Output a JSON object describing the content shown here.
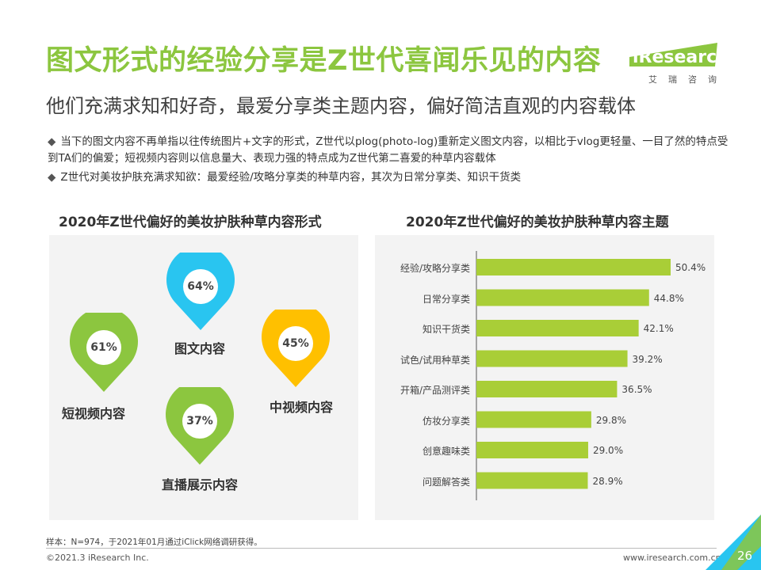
{
  "header": {
    "title": "图文形式的经验分享是Z世代喜闻乐见的内容",
    "subtitle": "他们充满求知和好奇，最爱分享类主题内容，偏好简洁直观的内容载体"
  },
  "logo": {
    "text": "iResearch",
    "sub": "艾瑞咨询"
  },
  "bullets": [
    "当下的图文内容不再单指以往传统图片+文字的形式，Z世代以plog(photo-log)重新定义图文内容，以相比于vlog更轻量、一目了然的特点受到TA们的偏爱；短视频内容则以信息量大、表现力强的特点成为Z世代第二喜爱的种草内容载体",
    "Z世代对美妆护肤充满求知欲：最爱经验/攻略分享类的种草内容，其次为日常分享类、知识干货类"
  ],
  "left_chart": {
    "title": "2020年Z世代偏好的美妆护肤种草内容形式",
    "pins": [
      {
        "label": "图文内容",
        "value": "64%",
        "color": "#29c5f0"
      },
      {
        "label": "短视频内容",
        "value": "61%",
        "color": "#8cc63f"
      },
      {
        "label": "中视频内容",
        "value": "45%",
        "color": "#ffc000"
      },
      {
        "label": "直播展示内容",
        "value": "37%",
        "color": "#8cc63f"
      }
    ]
  },
  "chart_data": {
    "type": "bar",
    "orientation": "horizontal",
    "title": "2020年Z世代偏好的美妆护肤种草内容主题",
    "categories": [
      "经验/攻略分享类",
      "日常分享类",
      "知识干货类",
      "试色/试用种草类",
      "开箱/产品测评类",
      "仿妆分享类",
      "创意趣味类",
      "问题解答类"
    ],
    "values": [
      50.4,
      44.8,
      42.1,
      39.2,
      36.5,
      29.8,
      29.0,
      28.9
    ],
    "value_labels": [
      "50.4%",
      "44.8%",
      "42.1%",
      "39.2%",
      "36.5%",
      "29.8%",
      "29.0%",
      "28.9%"
    ],
    "unit": "%",
    "xlim": [
      0,
      52
    ],
    "bar_color": "#a9ce37"
  },
  "footer": {
    "footnote": "样本：N=974，于2021年01月通过iClick网络调研获得。",
    "copyright": "©2021.3 iResearch Inc.",
    "website": "www.iresearch.com.cn",
    "page": "26"
  }
}
